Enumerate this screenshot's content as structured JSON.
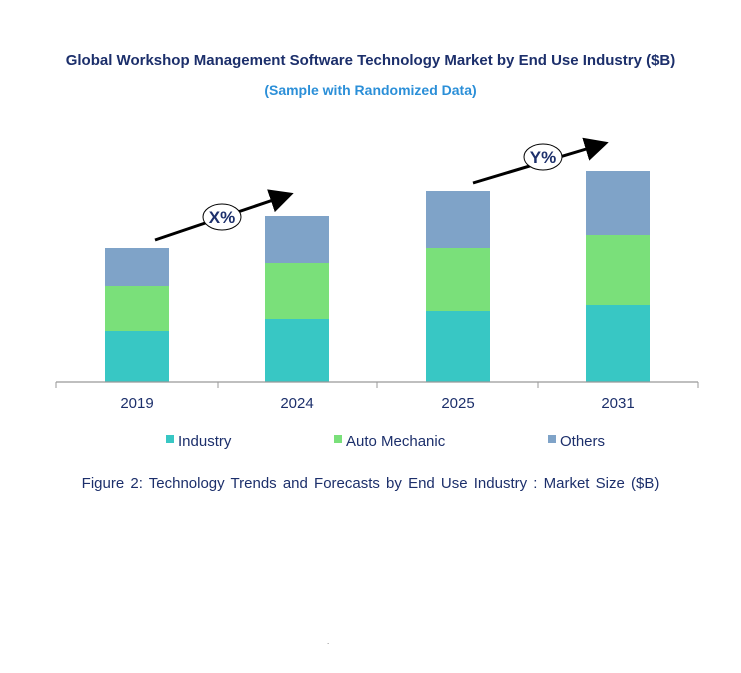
{
  "chart_data": {
    "type": "bar",
    "stacked": true,
    "title": "Global Workshop Management Software Technology Market by End Use Industry ($B)",
    "subtitle": "(Sample with Randomized Data)",
    "caption": "Figure 2: Technology  Trends  and Forecasts by End Use Industry  : Market Size ($B)",
    "categories": [
      "2019",
      "2024",
      "2025",
      "2031"
    ],
    "series": [
      {
        "name": "Industry",
        "color": "#38C7C4",
        "values": [
          5.1,
          6.3,
          7.1,
          7.7
        ]
      },
      {
        "name": "Auto Mechanic",
        "color": "#7AE07A",
        "values": [
          4.5,
          5.6,
          6.3,
          7.0
        ]
      },
      {
        "name": "Others",
        "color": "#7FA3C8",
        "values": [
          3.8,
          4.7,
          5.7,
          6.4
        ]
      }
    ],
    "ylim": [
      0,
      22
    ],
    "y_axis_shown": false,
    "grid": false,
    "legend_position": "bottom",
    "annotations": [
      {
        "text": "X%",
        "from": "2019",
        "to": "2024"
      },
      {
        "text": "Y%",
        "from": "2025",
        "to": "2031"
      }
    ],
    "footnote": "."
  }
}
